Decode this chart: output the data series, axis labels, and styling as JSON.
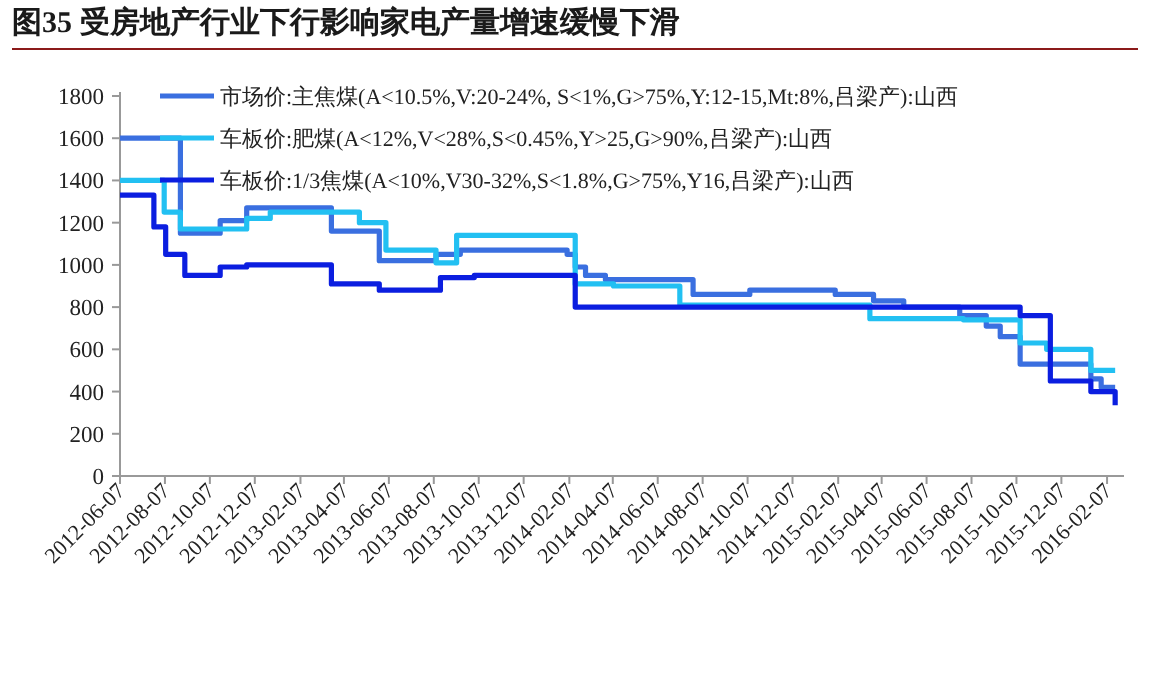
{
  "chart_data": {
    "type": "step",
    "title": "图35 受房地产行业下行影响家电产量增速缓慢下滑",
    "xlim": [
      "2012-06-07",
      "2016-03-01"
    ],
    "ylim": [
      0,
      1800
    ],
    "yticks": [
      0,
      200,
      400,
      600,
      800,
      1000,
      1200,
      1400,
      1600,
      1800
    ],
    "xticks": [
      "2012-06-07",
      "2012-08-07",
      "2012-10-07",
      "2012-12-07",
      "2013-02-07",
      "2013-04-07",
      "2013-06-07",
      "2013-08-07",
      "2013-10-07",
      "2013-12-07",
      "2014-02-07",
      "2014-04-07",
      "2014-06-07",
      "2014-08-07",
      "2014-10-07",
      "2014-12-07",
      "2015-02-07",
      "2015-04-07",
      "2015-06-07",
      "2015-08-07",
      "2015-10-07",
      "2015-12-07",
      "2016-02-07"
    ],
    "legend": "top",
    "grid": false,
    "marker": "none",
    "line_style": "solid",
    "series": [
      {
        "name": "市场价:主焦煤(A<10.5%,V:20-24%, S<1%,G>75%,Y:12-15,Mt:8%,吕梁产):山西",
        "color": "#3a6fe0",
        "x": [
          "2012-06-07",
          "2012-08-28",
          "2012-10-21",
          "2012-11-26",
          "2013-03-21",
          "2013-05-25",
          "2013-08-10",
          "2013-09-12",
          "2014-02-04",
          "2014-02-15",
          "2014-03-01",
          "2014-03-28",
          "2014-07-25",
          "2014-10-10",
          "2015-02-03",
          "2015-03-27",
          "2015-05-07",
          "2015-07-22",
          "2015-08-27",
          "2015-09-15",
          "2015-10-12",
          "2016-01-16",
          "2016-01-30",
          "2016-02-18"
        ],
        "values": [
          1600,
          1150,
          1210,
          1270,
          1160,
          1020,
          1050,
          1070,
          1050,
          990,
          950,
          930,
          860,
          880,
          860,
          830,
          800,
          760,
          710,
          660,
          530,
          460,
          420,
          420
        ]
      },
      {
        "name": "车板价:肥煤(A<12%,V<28%,S<0.45%,Y>25,G>90%,吕梁产):山西",
        "color": "#22c0f2",
        "x": [
          "2012-06-07",
          "2012-08-06",
          "2012-08-28",
          "2012-11-26",
          "2012-12-28",
          "2013-04-28",
          "2013-06-03",
          "2013-08-10",
          "2013-09-07",
          "2014-02-15",
          "2014-04-08",
          "2014-07-07",
          "2015-03-22",
          "2015-07-27",
          "2015-10-12",
          "2015-11-17",
          "2016-01-16",
          "2016-02-18"
        ],
        "values": [
          1400,
          1250,
          1170,
          1220,
          1250,
          1200,
          1070,
          1010,
          1140,
          910,
          900,
          810,
          745,
          740,
          630,
          600,
          500,
          500
        ]
      },
      {
        "name": "车板价:1/3焦煤(A<10%,V30-32%,S<1.8%,G>75%,Y16,吕梁产):山西",
        "color": "#0b1ee0",
        "x": [
          "2012-06-07",
          "2012-07-23",
          "2012-08-08",
          "2012-09-03",
          "2012-10-21",
          "2012-11-26",
          "2013-03-21",
          "2013-05-25",
          "2013-08-16",
          "2013-10-01",
          "2014-02-15",
          "2015-07-27",
          "2015-10-12",
          "2015-11-22",
          "2016-01-16",
          "2016-02-18"
        ],
        "values": [
          1330,
          1180,
          1050,
          950,
          990,
          1000,
          910,
          880,
          940,
          950,
          800,
          800,
          760,
          450,
          400,
          335
        ]
      }
    ]
  }
}
